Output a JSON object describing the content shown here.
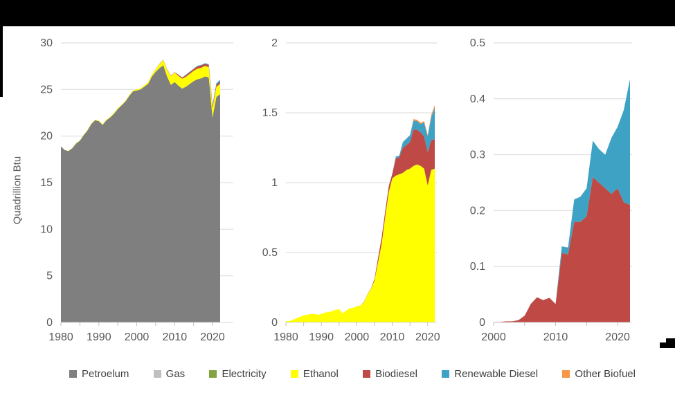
{
  "page": {
    "background": "#ffffff",
    "top_bar_color": "#000000"
  },
  "y_axis_title": "Quadrillion Btu",
  "legend": {
    "items": [
      {
        "label": "Petroelum",
        "color": "#7f7f7f"
      },
      {
        "label": "Gas",
        "color": "#bfbfbf"
      },
      {
        "label": "Electricity",
        "color": "#84a33f"
      },
      {
        "label": "Ethanol",
        "color": "#ffff00"
      },
      {
        "label": "Biodiesel",
        "color": "#bf4a45"
      },
      {
        "label": "Renewable Diesel",
        "color": "#3ea2c5"
      },
      {
        "label": "Other Biofuel",
        "color": "#f79646"
      }
    ]
  },
  "chart_data": [
    {
      "type": "area",
      "stacked": true,
      "title": "",
      "ylabel": "Quadrillion Btu",
      "ylim": [
        0,
        30
      ],
      "yticks": [
        0,
        5,
        10,
        15,
        20,
        25,
        30
      ],
      "ytick_labels": [
        "0",
        "5",
        "10",
        "15",
        "20",
        "25",
        "30"
      ],
      "xlim": [
        1980,
        2022
      ],
      "xticks": [
        1980,
        1990,
        2000,
        2010,
        2020
      ],
      "xtick_minor_step": 5,
      "grid": true,
      "legend_position": "bottom-shared",
      "x": [
        1980,
        1981,
        1982,
        1983,
        1984,
        1985,
        1986,
        1987,
        1988,
        1989,
        1990,
        1991,
        1992,
        1993,
        1994,
        1995,
        1996,
        1997,
        1998,
        1999,
        2000,
        2001,
        2002,
        2003,
        2004,
        2005,
        2006,
        2007,
        2008,
        2009,
        2010,
        2011,
        2012,
        2013,
        2014,
        2015,
        2016,
        2017,
        2018,
        2019,
        2020,
        2021,
        2022
      ],
      "series": [
        {
          "name": "Petroleum",
          "color": "#7f7f7f",
          "values": [
            18.9,
            18.5,
            18.4,
            18.7,
            19.2,
            19.5,
            20.1,
            20.6,
            21.3,
            21.7,
            21.6,
            21.2,
            21.7,
            22.0,
            22.4,
            22.9,
            23.3,
            23.7,
            24.3,
            24.8,
            24.9,
            25.0,
            25.3,
            25.6,
            26.4,
            26.9,
            27.3,
            27.6,
            26.4,
            25.5,
            25.8,
            25.4,
            25.1,
            25.3,
            25.6,
            25.9,
            26.1,
            26.2,
            26.4,
            26.3,
            22.0,
            24.2,
            24.5
          ]
        },
        {
          "name": "Ethanol",
          "color": "#ffff00",
          "values": [
            0.01,
            0.01,
            0.02,
            0.03,
            0.04,
            0.05,
            0.055,
            0.06,
            0.06,
            0.055,
            0.06,
            0.07,
            0.075,
            0.08,
            0.09,
            0.095,
            0.065,
            0.085,
            0.1,
            0.105,
            0.115,
            0.12,
            0.145,
            0.2,
            0.24,
            0.3,
            0.43,
            0.56,
            0.75,
            0.93,
            1.03,
            1.05,
            1.06,
            1.07,
            1.09,
            1.1,
            1.12,
            1.13,
            1.12,
            1.1,
            0.98,
            1.09,
            1.1
          ]
        },
        {
          "name": "Biodiesel",
          "color": "#bf4a45",
          "values": [
            0,
            0,
            0,
            0,
            0,
            0,
            0,
            0,
            0,
            0,
            0,
            0,
            0,
            0,
            0,
            0,
            0,
            0,
            0,
            0,
            0.001,
            0.001,
            0.002,
            0.002,
            0.004,
            0.012,
            0.033,
            0.045,
            0.04,
            0.044,
            0.033,
            0.124,
            0.122,
            0.18,
            0.18,
            0.19,
            0.26,
            0.25,
            0.24,
            0.23,
            0.24,
            0.215,
            0.21
          ]
        },
        {
          "name": "Renewable Diesel",
          "color": "#3ea2c5",
          "values": [
            0,
            0,
            0,
            0,
            0,
            0,
            0,
            0,
            0,
            0,
            0,
            0,
            0,
            0,
            0,
            0,
            0,
            0,
            0,
            0,
            0,
            0,
            0,
            0,
            0,
            0,
            0,
            0,
            0,
            0,
            0,
            0.012,
            0.012,
            0.04,
            0.045,
            0.05,
            0.065,
            0.06,
            0.06,
            0.1,
            0.11,
            0.165,
            0.225
          ]
        }
      ]
    },
    {
      "type": "area",
      "stacked": true,
      "title": "",
      "ylabel": "",
      "ylim": [
        0,
        2
      ],
      "yticks": [
        0,
        0.5,
        1,
        1.5,
        2
      ],
      "ytick_labels": [
        "0",
        "0.5",
        "1",
        "1.5",
        "2"
      ],
      "xlim": [
        1980,
        2022
      ],
      "xticks": [
        1980,
        1990,
        2000,
        2010,
        2020
      ],
      "xtick_minor_step": 5,
      "grid": true,
      "x": [
        1980,
        1981,
        1982,
        1983,
        1984,
        1985,
        1986,
        1987,
        1988,
        1989,
        1990,
        1991,
        1992,
        1993,
        1994,
        1995,
        1996,
        1997,
        1998,
        1999,
        2000,
        2001,
        2002,
        2003,
        2004,
        2005,
        2006,
        2007,
        2008,
        2009,
        2010,
        2011,
        2012,
        2013,
        2014,
        2015,
        2016,
        2017,
        2018,
        2019,
        2020,
        2021,
        2022
      ],
      "series": [
        {
          "name": "Ethanol",
          "color": "#ffff00",
          "values": [
            0.01,
            0.01,
            0.02,
            0.03,
            0.04,
            0.05,
            0.055,
            0.06,
            0.06,
            0.055,
            0.06,
            0.07,
            0.075,
            0.08,
            0.09,
            0.095,
            0.065,
            0.085,
            0.1,
            0.105,
            0.115,
            0.12,
            0.145,
            0.2,
            0.24,
            0.3,
            0.43,
            0.56,
            0.75,
            0.93,
            1.03,
            1.05,
            1.06,
            1.07,
            1.09,
            1.1,
            1.12,
            1.13,
            1.12,
            1.1,
            0.98,
            1.09,
            1.1
          ]
        },
        {
          "name": "Biodiesel",
          "color": "#bf4a45",
          "values": [
            0,
            0,
            0,
            0,
            0,
            0,
            0,
            0,
            0,
            0,
            0,
            0,
            0,
            0,
            0,
            0,
            0,
            0,
            0,
            0,
            0.001,
            0.001,
            0.002,
            0.002,
            0.004,
            0.012,
            0.033,
            0.045,
            0.04,
            0.044,
            0.033,
            0.124,
            0.122,
            0.18,
            0.18,
            0.19,
            0.26,
            0.25,
            0.24,
            0.23,
            0.24,
            0.215,
            0.21
          ]
        },
        {
          "name": "Renewable Diesel",
          "color": "#3ea2c5",
          "values": [
            0,
            0,
            0,
            0,
            0,
            0,
            0,
            0,
            0,
            0,
            0,
            0,
            0,
            0,
            0,
            0,
            0,
            0,
            0,
            0,
            0,
            0,
            0,
            0,
            0,
            0,
            0,
            0,
            0,
            0,
            0,
            0.012,
            0.012,
            0.04,
            0.045,
            0.05,
            0.065,
            0.06,
            0.06,
            0.1,
            0.11,
            0.165,
            0.225
          ]
        },
        {
          "name": "Other Biofuel",
          "color": "#f79646",
          "values": [
            0,
            0,
            0,
            0,
            0,
            0,
            0,
            0,
            0,
            0,
            0,
            0,
            0,
            0,
            0,
            0,
            0,
            0,
            0,
            0,
            0,
            0,
            0,
            0,
            0,
            0,
            0,
            0,
            0,
            0,
            0,
            0,
            0,
            0,
            0,
            0,
            0.01,
            0.01,
            0.01,
            0.01,
            0.012,
            0.015,
            0.02
          ]
        }
      ]
    },
    {
      "type": "area",
      "stacked": true,
      "title": "",
      "ylabel": "",
      "ylim": [
        0,
        0.5
      ],
      "yticks": [
        0,
        0.1,
        0.2,
        0.3,
        0.4,
        0.5
      ],
      "ytick_labels": [
        "0",
        "0.1",
        "0.2",
        "0.3",
        "0.4",
        "0.5"
      ],
      "xlim": [
        2000,
        2022
      ],
      "xticks": [
        2000,
        2010,
        2020
      ],
      "xtick_minor_step": 5,
      "grid": true,
      "x": [
        2000,
        2001,
        2002,
        2003,
        2004,
        2005,
        2006,
        2007,
        2008,
        2009,
        2010,
        2011,
        2012,
        2013,
        2014,
        2015,
        2016,
        2017,
        2018,
        2019,
        2020,
        2021,
        2022
      ],
      "series": [
        {
          "name": "Biodiesel",
          "color": "#bf4a45",
          "values": [
            0.001,
            0.001,
            0.002,
            0.002,
            0.004,
            0.012,
            0.033,
            0.045,
            0.04,
            0.044,
            0.033,
            0.124,
            0.122,
            0.18,
            0.18,
            0.19,
            0.26,
            0.25,
            0.24,
            0.23,
            0.24,
            0.215,
            0.21
          ]
        },
        {
          "name": "Renewable Diesel",
          "color": "#3ea2c5",
          "values": [
            0,
            0,
            0,
            0,
            0,
            0,
            0,
            0,
            0,
            0,
            0,
            0.012,
            0.012,
            0.04,
            0.045,
            0.05,
            0.065,
            0.06,
            0.06,
            0.1,
            0.11,
            0.165,
            0.225
          ]
        }
      ]
    }
  ]
}
